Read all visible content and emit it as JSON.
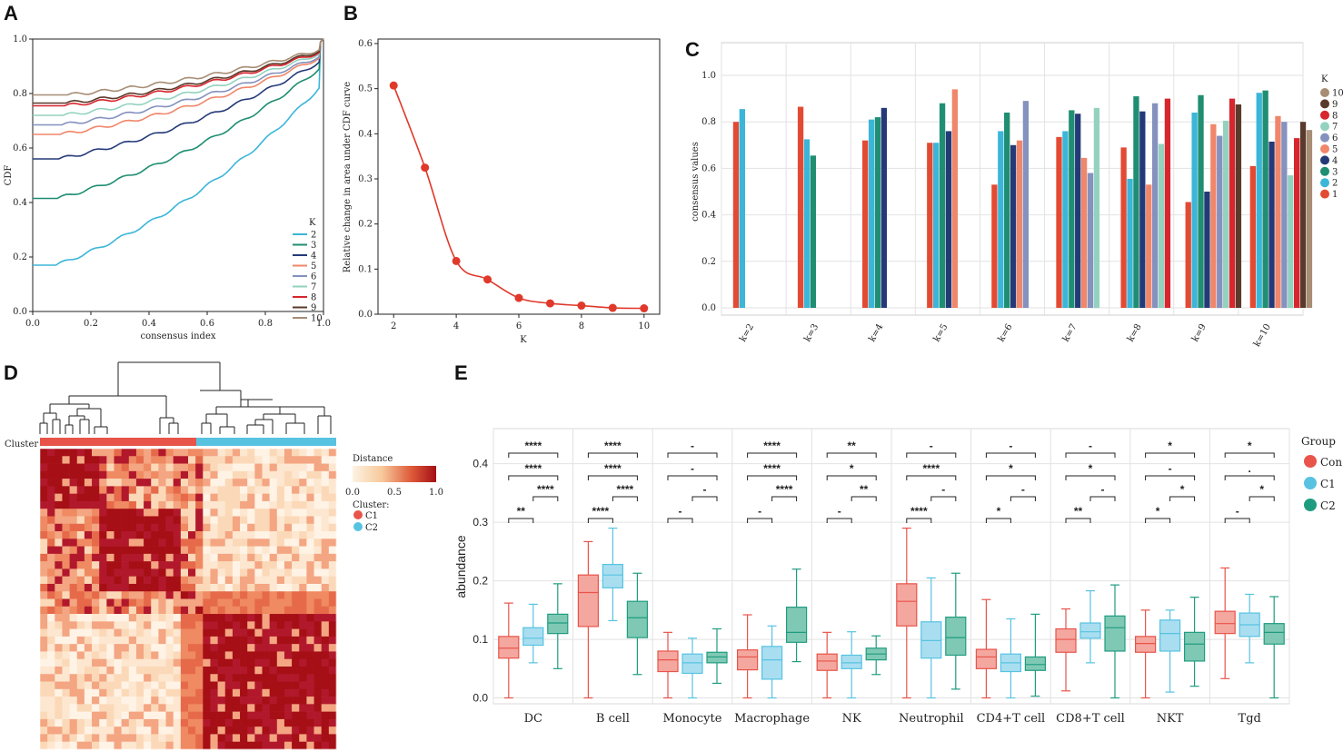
{
  "panels": {
    "a": "A",
    "b": "B",
    "c": "C",
    "d": "D",
    "e": "E"
  },
  "colors": {
    "k2": "#3bb6d8",
    "k3": "#1f8e72",
    "k4": "#243a78",
    "k5": "#f0866a",
    "k6": "#8591bf",
    "k7": "#93d2bf",
    "k8": "#d7262d",
    "k9": "#5a3a2c",
    "k10": "#a68d74",
    "con": "#e8544a",
    "c1": "#57c3e1",
    "c2": "#1f9c80"
  },
  "chart_data": [
    {
      "id": "cdf",
      "type": "line",
      "title": "",
      "xlabel": "consensus index",
      "ylabel": "CDF",
      "xlim": [
        0,
        1
      ],
      "ylim": [
        0,
        1
      ],
      "xticks": [
        "0.0",
        "0.2",
        "0.4",
        "0.6",
        "0.8",
        "1.0"
      ],
      "yticks": [
        "0.0",
        "0.2",
        "0.4",
        "0.6",
        "0.8",
        "1.0"
      ],
      "legend_title": "K",
      "series": [
        {
          "name": "2",
          "start": 0.17,
          "end": 0.82
        },
        {
          "name": "3",
          "start": 0.415,
          "end": 0.89
        },
        {
          "name": "4",
          "start": 0.56,
          "end": 0.915
        },
        {
          "name": "5",
          "start": 0.65,
          "end": 0.93
        },
        {
          "name": "6",
          "start": 0.685,
          "end": 0.935
        },
        {
          "name": "7",
          "start": 0.72,
          "end": 0.945
        },
        {
          "name": "8",
          "start": 0.755,
          "end": 0.95
        },
        {
          "name": "9",
          "start": 0.765,
          "end": 0.955
        },
        {
          "name": "10",
          "start": 0.795,
          "end": 0.96
        }
      ]
    },
    {
      "id": "delta",
      "type": "line",
      "title": "",
      "xlabel": "K",
      "ylabel": "Relative change in area under CDF curve",
      "x": [
        2,
        3,
        4,
        5,
        6,
        7,
        8,
        9,
        10
      ],
      "values": [
        0.507,
        0.325,
        0.118,
        0.077,
        0.036,
        0.024,
        0.019,
        0.014,
        0.013
      ],
      "xlim": [
        1.5,
        10.5
      ],
      "ylim": [
        0,
        0.61
      ],
      "xticks": [
        "2",
        "4",
        "6",
        "8",
        "10"
      ],
      "yticks": [
        "0.0",
        "0.1",
        "0.2",
        "0.3",
        "0.4",
        "0.5",
        "0.6"
      ]
    },
    {
      "id": "consensus",
      "type": "bar",
      "title": "",
      "xlabel": "",
      "ylabel": "consensus values",
      "categories": [
        "k=2",
        "k=3",
        "k=4",
        "k=5",
        "k=6",
        "k=7",
        "k=8",
        "k=9",
        "k=10"
      ],
      "ylim": [
        0,
        1
      ],
      "yticks": [
        "0.0",
        "0.2",
        "0.4",
        "0.6",
        "0.8",
        "1.0"
      ],
      "legend_title": "K",
      "legend": [
        "10",
        "9",
        "8",
        "7",
        "6",
        "5",
        "4",
        "3",
        "2",
        "1"
      ],
      "groups": [
        [
          0.8,
          0.855
        ],
        [
          0.865,
          0.725,
          0.655
        ],
        [
          0.72,
          0.81,
          0.82,
          0.86
        ],
        [
          0.71,
          0.71,
          0.88,
          0.76,
          0.94
        ],
        [
          0.53,
          0.76,
          0.84,
          0.7,
          0.72,
          0.89
        ],
        [
          0.735,
          0.76,
          0.85,
          0.835,
          0.645,
          0.58,
          0.86
        ],
        [
          0.69,
          0.555,
          0.91,
          0.845,
          0.53,
          0.88,
          0.705,
          0.9
        ],
        [
          0.455,
          0.84,
          0.915,
          0.5,
          0.79,
          0.74,
          0.805,
          0.9,
          0.875
        ],
        [
          0.61,
          0.925,
          0.935,
          0.715,
          0.825,
          0.8,
          0.57,
          0.73,
          0.8,
          0.765
        ]
      ]
    },
    {
      "id": "heatmap",
      "type": "heatmap",
      "title": "",
      "legend_title": "Distance",
      "legend_ticks": [
        "0.0",
        "0.5",
        "1.0"
      ],
      "cluster_label": "Cluster",
      "cluster_legend_title": "Cluster:",
      "clusters": [
        "C1",
        "C2"
      ]
    },
    {
      "id": "abundance",
      "type": "box",
      "title": "",
      "xlabel": "",
      "ylabel": "abundance",
      "categories": [
        "DC",
        "B cell",
        "Monocyte",
        "Macrophage",
        "NK",
        "Neutrophil",
        "CD4+T cell",
        "CD8+T cell",
        "NKT",
        "Tgd"
      ],
      "ylim": [
        -0.01,
        0.46
      ],
      "yticks": [
        "0.0",
        "0.1",
        "0.2",
        "0.3",
        "0.4"
      ],
      "legend_title": "Group",
      "series": [
        {
          "name": "Con",
          "boxes": [
            [
              0,
              0.068,
              0.085,
              0.105,
              0.162
            ],
            [
              0,
              0.122,
              0.18,
              0.21,
              0.267
            ],
            [
              0,
              0.045,
              0.065,
              0.08,
              0.112
            ],
            [
              0,
              0.048,
              0.07,
              0.082,
              0.142
            ],
            [
              0,
              0.047,
              0.063,
              0.075,
              0.112
            ],
            [
              0,
              0.123,
              0.165,
              0.195,
              0.29
            ],
            [
              0,
              0.05,
              0.07,
              0.083,
              0.168
            ],
            [
              0.012,
              0.078,
              0.1,
              0.118,
              0.152
            ],
            [
              0,
              0.078,
              0.093,
              0.105,
              0.15
            ],
            [
              0.033,
              0.11,
              0.127,
              0.148,
              0.222
            ]
          ]
        },
        {
          "name": "C1",
          "boxes": [
            [
              0.06,
              0.09,
              0.102,
              0.12,
              0.16
            ],
            [
              0.132,
              0.188,
              0.21,
              0.228,
              0.29
            ],
            [
              0,
              0.042,
              0.06,
              0.075,
              0.102
            ],
            [
              0,
              0.032,
              0.065,
              0.088,
              0.123
            ],
            [
              0,
              0.05,
              0.06,
              0.073,
              0.113
            ],
            [
              0,
              0.068,
              0.098,
              0.13,
              0.205
            ],
            [
              0,
              0.045,
              0.06,
              0.075,
              0.135
            ],
            [
              0.06,
              0.102,
              0.113,
              0.128,
              0.183
            ],
            [
              0.01,
              0.08,
              0.11,
              0.133,
              0.15
            ],
            [
              0.06,
              0.105,
              0.125,
              0.145,
              0.177
            ]
          ]
        },
        {
          "name": "C2",
          "boxes": [
            [
              0.05,
              0.11,
              0.128,
              0.143,
              0.195
            ],
            [
              0.04,
              0.103,
              0.137,
              0.165,
              0.213
            ],
            [
              0.025,
              0.06,
              0.07,
              0.078,
              0.118
            ],
            [
              0.062,
              0.095,
              0.112,
              0.155,
              0.22
            ],
            [
              0.04,
              0.065,
              0.075,
              0.085,
              0.106
            ],
            [
              0.015,
              0.073,
              0.103,
              0.138,
              0.213
            ],
            [
              0.003,
              0.047,
              0.057,
              0.07,
              0.143
            ],
            [
              0,
              0.08,
              0.12,
              0.14,
              0.193
            ],
            [
              0.02,
              0.063,
              0.092,
              0.112,
              0.172
            ],
            [
              0,
              0.092,
              0.112,
              0.127,
              0.173
            ]
          ]
        }
      ],
      "significance": [
        [
          "**",
          "****",
          "****"
        ],
        [
          "****",
          "****",
          "****"
        ],
        [
          "-",
          "-",
          "-"
        ],
        [
          "-",
          "****",
          "****"
        ],
        [
          "-",
          "*",
          "**"
        ],
        [
          "****",
          "****",
          "-"
        ],
        [
          "*",
          "*",
          "-"
        ],
        [
          "**",
          "*",
          "-"
        ],
        [
          "*",
          "-",
          "*"
        ],
        [
          "-",
          ".",
          "*"
        ]
      ],
      "significance_c1c2": [
        "****",
        "****",
        "-",
        "****",
        "**",
        "-",
        "-",
        "-",
        "*",
        "*"
      ]
    }
  ]
}
